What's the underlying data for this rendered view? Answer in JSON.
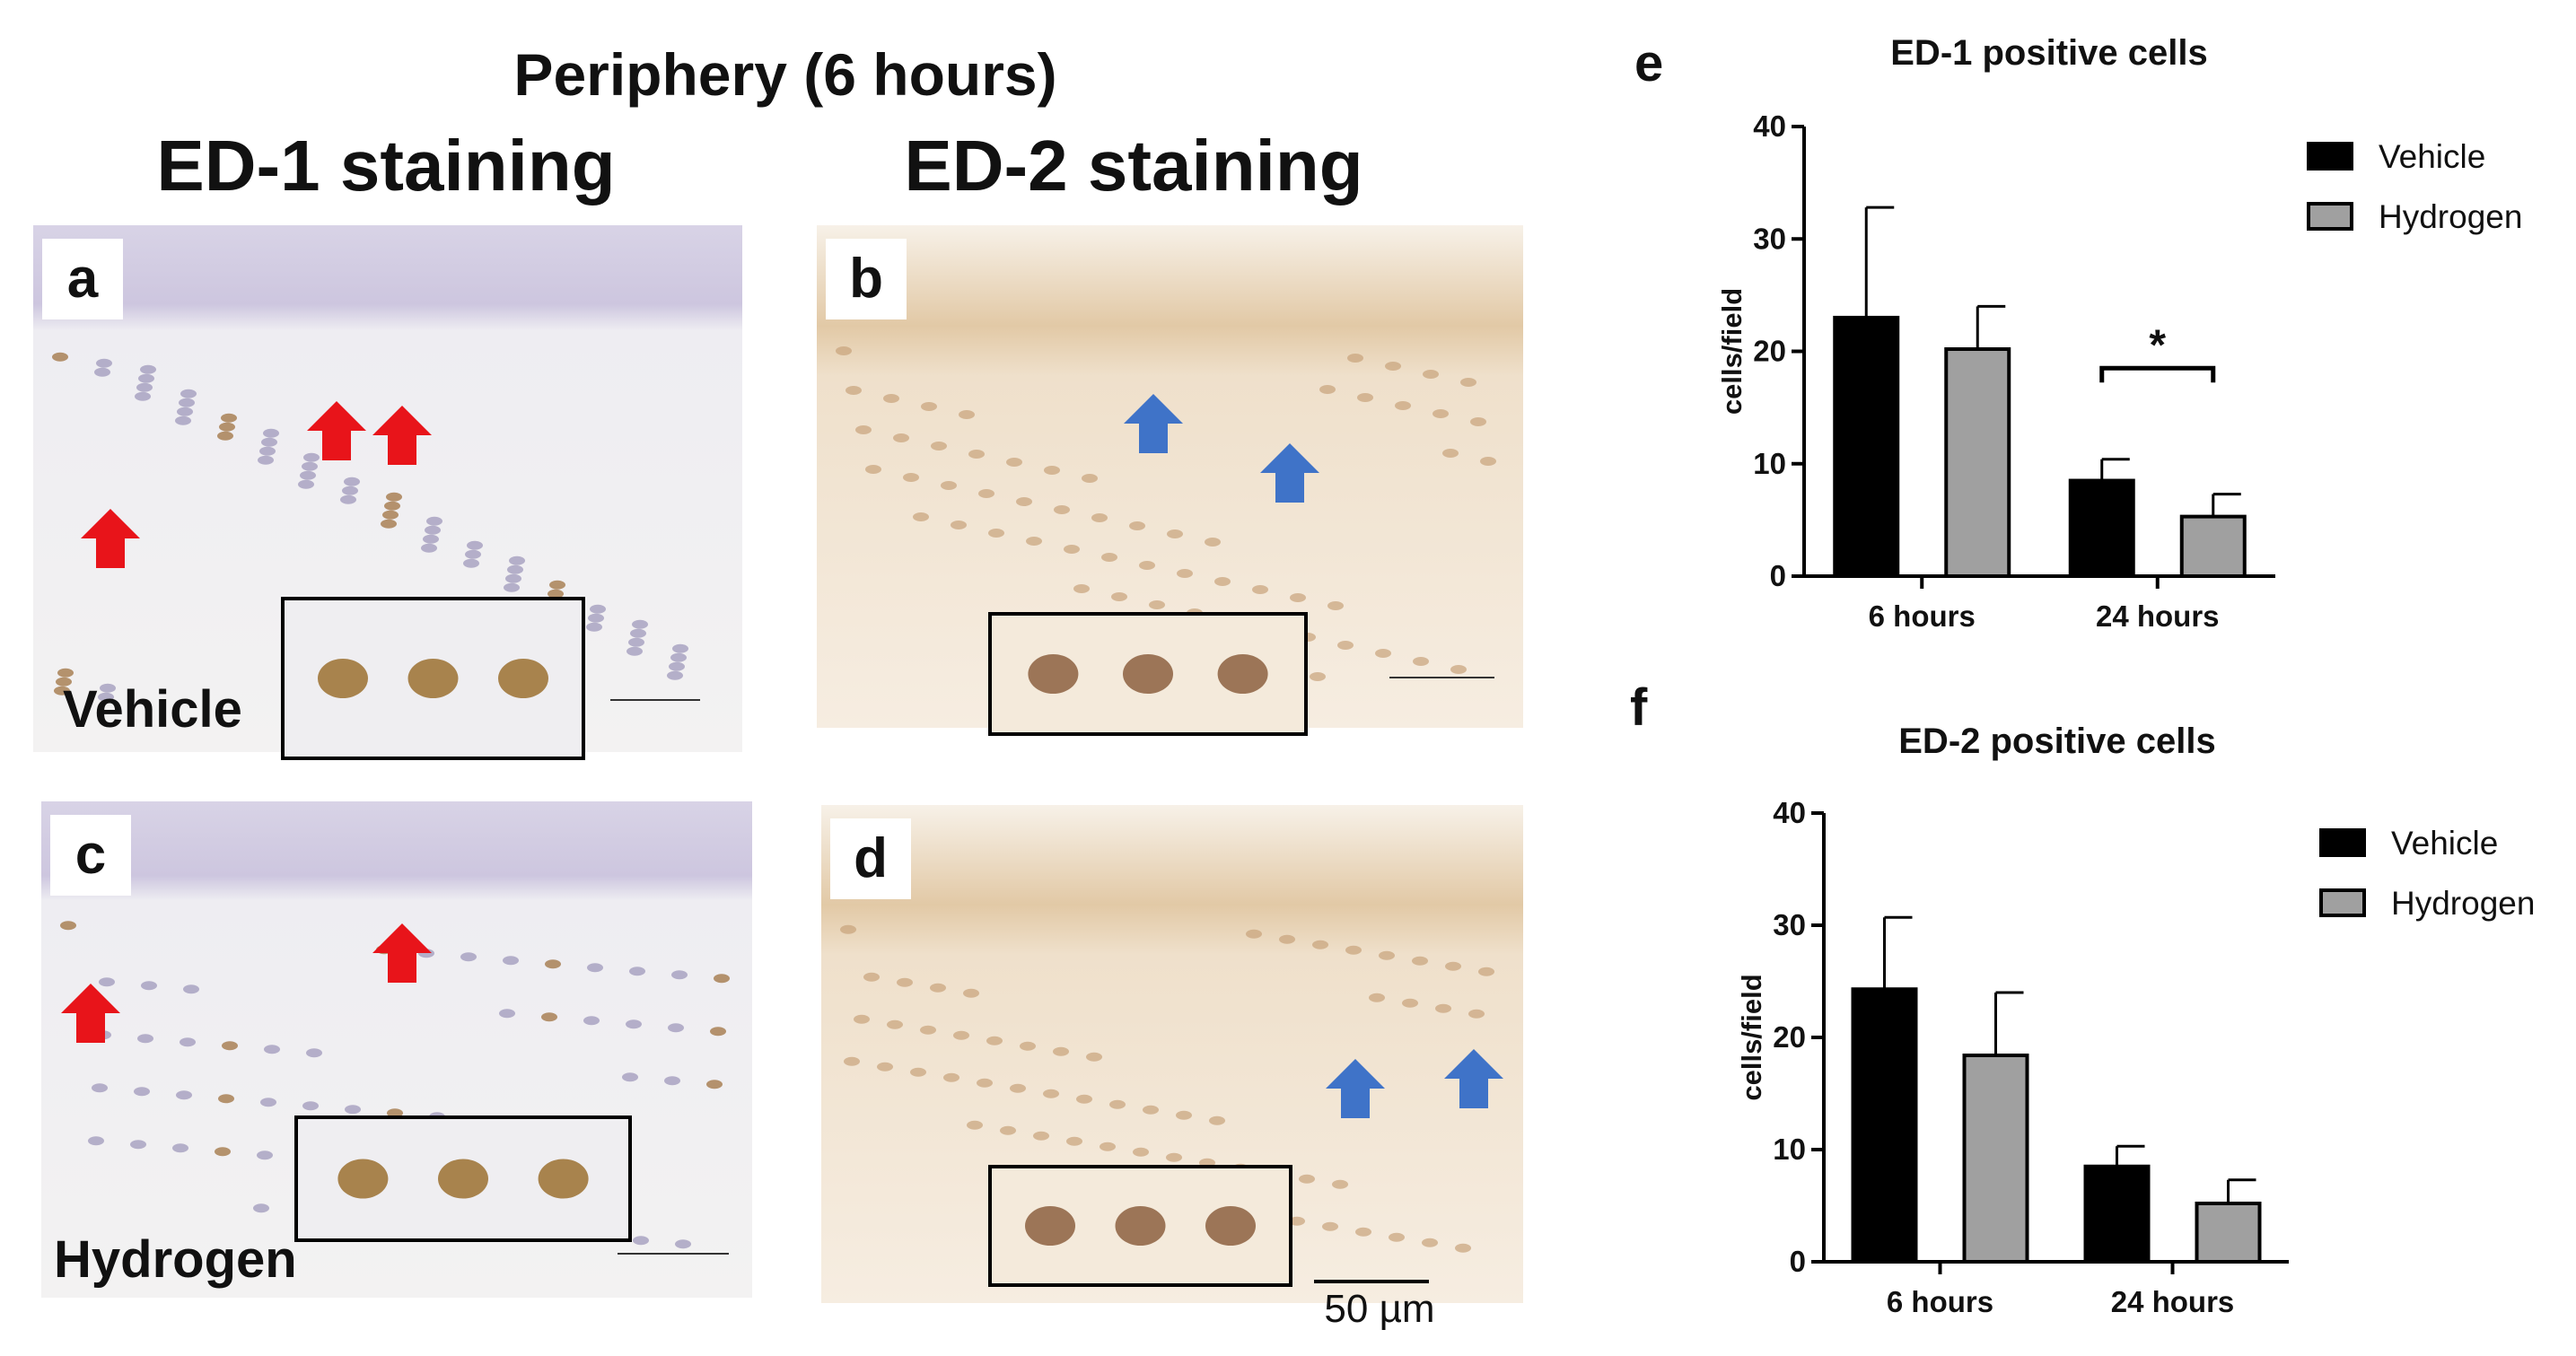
{
  "figure": {
    "title": "Periphery (6 hours)",
    "column_titles": [
      "ED-1 staining",
      "ED-2 staining"
    ],
    "panels": [
      {
        "letter": "a",
        "label": "Vehicle"
      },
      {
        "letter": "b"
      },
      {
        "letter": "c",
        "label": "Hydrogen"
      },
      {
        "letter": "d"
      }
    ],
    "scale_bar": "50 µm"
  },
  "chart_data": [
    {
      "type": "bar",
      "panel_letter": "e",
      "title": "ED-1 positive cells",
      "y_label": "cells/field",
      "categories": [
        "6 hours",
        "24 hours"
      ],
      "series": [
        {
          "name": "Vehicle",
          "color": "#000000",
          "values": [
            23,
            8.5
          ],
          "errors": [
            9.8,
            1.9
          ]
        },
        {
          "name": "Hydrogen",
          "color": "#a0a0a0",
          "values": [
            20.2,
            5.3
          ],
          "errors": [
            3.8,
            2
          ]
        }
      ],
      "ylim": [
        0,
        40
      ],
      "yticks": [
        0,
        10,
        20,
        30,
        40
      ],
      "annotations": [
        {
          "text": "*"
        }
      ],
      "legend": "right"
    },
    {
      "type": "bar",
      "panel_letter": "f",
      "title": "ED-2 positive cells",
      "y_label": "cells/field",
      "categories": [
        "6 hours",
        "24 hours"
      ],
      "series": [
        {
          "name": "Vehicle",
          "color": "#000000",
          "values": [
            24.3,
            8.5
          ],
          "errors": [
            6.4,
            1.8
          ]
        },
        {
          "name": "Hydrogen",
          "color": "#a0a0a0",
          "values": [
            18.4,
            5.2
          ],
          "errors": [
            5.6,
            2.1
          ]
        }
      ],
      "ylim": [
        0,
        40
      ],
      "yticks": [
        0,
        10,
        20,
        30,
        40
      ],
      "legend": "right"
    }
  ]
}
